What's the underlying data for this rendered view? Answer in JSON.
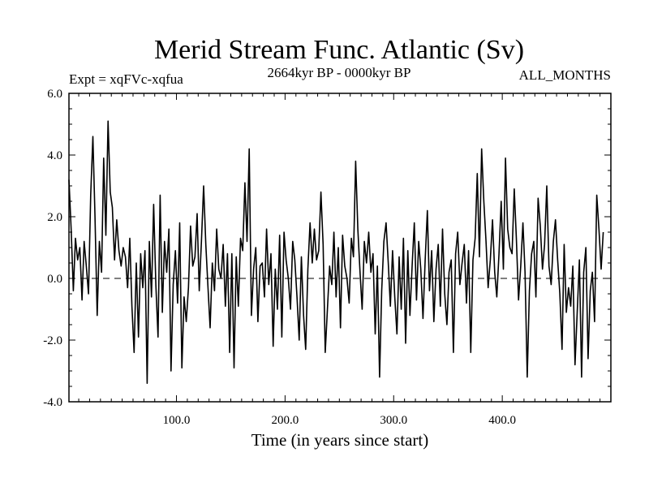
{
  "chart_data": {
    "type": "line",
    "title": "Merid Stream Func. Atlantic (Sv)",
    "experiment_label": "Expt = xqFVc-xqfua",
    "period_label": "2664kyr BP - 0000kyr BP",
    "season_label": "ALL_MONTHS",
    "xlabel": "Time (in years since start)",
    "ylabel": "",
    "xlim": [
      1,
      500
    ],
    "ylim": [
      -4.0,
      6.0
    ],
    "x_ticks": [
      100,
      200,
      300,
      400
    ],
    "x_tick_labels": [
      "100.0",
      "200.0",
      "300.0",
      "400.0"
    ],
    "y_ticks": [
      -4,
      -2,
      0,
      2,
      4,
      6
    ],
    "y_tick_labels": [
      "-4.0",
      "-2.0",
      "0.0",
      "2.0",
      "4.0",
      "6.0"
    ],
    "zero_line": {
      "y": 0.0,
      "style": "dashed"
    },
    "series": [
      {
        "name": "Merid Stream Func. Atlantic",
        "x_start": 1,
        "x_step": 2,
        "values": [
          3.2,
          1.6,
          -0.4,
          1.3,
          0.6,
          1.0,
          -0.7,
          1.2,
          0.4,
          -0.5,
          2.7,
          4.6,
          2.0,
          -1.2,
          1.2,
          0.2,
          3.9,
          1.4,
          5.1,
          2.8,
          2.3,
          0.6,
          1.9,
          0.9,
          0.4,
          1.0,
          0.7,
          -0.3,
          1.3,
          -0.9,
          -2.4,
          0.5,
          -1.9,
          0.8,
          -0.3,
          0.9,
          -3.4,
          1.2,
          -0.6,
          2.4,
          -0.2,
          -1.9,
          2.7,
          -1.1,
          1.2,
          0.2,
          1.6,
          -3.0,
          -0.2,
          0.9,
          -0.8,
          1.8,
          -2.9,
          -0.6,
          -1.4,
          -0.3,
          1.7,
          0.4,
          0.7,
          2.1,
          -0.4,
          1.2,
          3.0,
          1.1,
          -0.3,
          -1.6,
          0.5,
          -0.4,
          1.6,
          0.3,
          0.0,
          1.1,
          -0.9,
          0.8,
          -2.4,
          0.8,
          -2.9,
          0.7,
          -0.9,
          1.3,
          0.9,
          3.1,
          1.2,
          4.2,
          -1.2,
          0.3,
          1.0,
          -1.4,
          0.4,
          0.5,
          -0.6,
          1.6,
          -0.2,
          0.8,
          -2.2,
          0.3,
          -1.0,
          1.4,
          -1.9,
          1.5,
          0.6,
          0.0,
          -1.0,
          1.2,
          0.6,
          -0.6,
          -2.0,
          0.7,
          -1.2,
          -2.3,
          0.3,
          1.8,
          0.5,
          1.6,
          0.6,
          0.9,
          2.8,
          1.1,
          -2.4,
          -1.0,
          0.4,
          -0.2,
          1.5,
          -0.6,
          1.0,
          -1.6,
          1.4,
          0.4,
          0.0,
          -0.8,
          1.3,
          0.7,
          3.8,
          1.6,
          0.2,
          -1.0,
          1.2,
          0.5,
          1.5,
          0.2,
          0.8,
          -1.8,
          0.4,
          -3.2,
          -0.4,
          1.2,
          1.8,
          0.5,
          -0.9,
          0.9,
          -0.6,
          -1.8,
          0.7,
          -1.0,
          1.3,
          -2.1,
          0.9,
          -1.2,
          0.4,
          1.8,
          -0.7,
          1.2,
          0.3,
          -1.3,
          0.6,
          2.2,
          -0.4,
          0.9,
          -1.4,
          0.3,
          1.1,
          -0.9,
          1.6,
          -0.5,
          -1.5,
          0.2,
          0.6,
          -2.4,
          0.8,
          1.5,
          -0.2,
          0.5,
          1.1,
          -0.8,
          0.9,
          -2.4,
          0.6,
          1.3,
          3.4,
          0.7,
          4.2,
          2.5,
          1.2,
          -0.3,
          0.6,
          1.9,
          0.2,
          -0.6,
          0.8,
          2.5,
          0.3,
          3.9,
          1.6,
          1.0,
          0.8,
          2.9,
          1.3,
          -0.7,
          0.4,
          1.8,
          0.2,
          -3.2,
          -0.4,
          0.8,
          1.2,
          -0.6,
          2.6,
          1.7,
          0.3,
          1.1,
          3.0,
          0.4,
          -0.2,
          1.2,
          1.9,
          0.6,
          -0.5,
          -2.3,
          1.1,
          -1.1,
          -0.3,
          -0.9,
          0.4,
          -2.8,
          -1.1,
          0.6,
          -3.2,
          0.2,
          1.0,
          -2.6,
          -0.4,
          0.2,
          -1.4,
          2.7,
          1.6,
          0.3,
          1.5
        ]
      }
    ]
  }
}
